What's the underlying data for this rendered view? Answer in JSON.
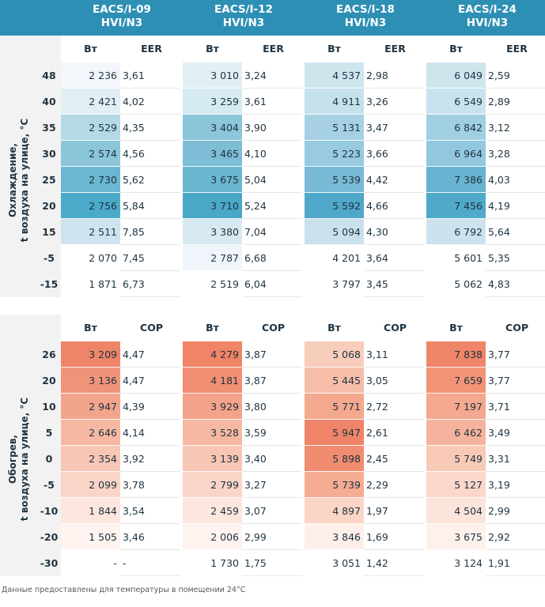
{
  "models": [
    {
      "line1": "EACS/I-09",
      "line2": "HVI/N3"
    },
    {
      "line1": "EACS/I-12",
      "line2": "HVI/N3"
    },
    {
      "line1": "EACS/I-18",
      "line2": "HVI/N3"
    },
    {
      "line1": "EACS/I-24",
      "line2": "HVI/N3"
    }
  ],
  "cooling": {
    "title_line1": "Охлаждение,",
    "title_line2": "t воздуха на улице, °C",
    "power_label": "Вт",
    "ratio_label": "EER",
    "rows": [
      {
        "label": "48",
        "cells": [
          [
            "2 236",
            "3,61"
          ],
          [
            "3 010",
            "3,24"
          ],
          [
            "4 537",
            "2,98"
          ],
          [
            "6 049",
            "2,59"
          ]
        ]
      },
      {
        "label": "40",
        "cells": [
          [
            "2 421",
            "4,02"
          ],
          [
            "3 259",
            "3,61"
          ],
          [
            "4 911",
            "3,26"
          ],
          [
            "6 549",
            "2,89"
          ]
        ]
      },
      {
        "label": "35",
        "cells": [
          [
            "2 529",
            "4,35"
          ],
          [
            "3 404",
            "3,90"
          ],
          [
            "5 131",
            "3,47"
          ],
          [
            "6 842",
            "3,12"
          ]
        ]
      },
      {
        "label": "30",
        "cells": [
          [
            "2 574",
            "4,56"
          ],
          [
            "3 465",
            "4,10"
          ],
          [
            "5 223",
            "3,66"
          ],
          [
            "6 964",
            "3,28"
          ]
        ]
      },
      {
        "label": "25",
        "cells": [
          [
            "2 730",
            "5,62"
          ],
          [
            "3 675",
            "5,04"
          ],
          [
            "5 539",
            "4,42"
          ],
          [
            "7 386",
            "4,03"
          ]
        ]
      },
      {
        "label": "20",
        "cells": [
          [
            "2 756",
            "5,84"
          ],
          [
            "3 710",
            "5,24"
          ],
          [
            "5 592",
            "4,66"
          ],
          [
            "7 456",
            "4,19"
          ]
        ]
      },
      {
        "label": "15",
        "cells": [
          [
            "2 511",
            "7,85"
          ],
          [
            "3 380",
            "7,04"
          ],
          [
            "5 094",
            "4,30"
          ],
          [
            "6 792",
            "5,64"
          ]
        ]
      },
      {
        "label": "-5",
        "cells": [
          [
            "2 070",
            "7,45"
          ],
          [
            "2 787",
            "6,68"
          ],
          [
            "4 201",
            "3,64"
          ],
          [
            "5 601",
            "5,35"
          ]
        ]
      },
      {
        "label": "-15",
        "cells": [
          [
            "1 871",
            "6,73"
          ],
          [
            "2 519",
            "6,04"
          ],
          [
            "3 797",
            "3,45"
          ],
          [
            "5 062",
            "4,83"
          ]
        ]
      }
    ],
    "shades": [
      [
        "#f3f7fc",
        "#e2f0f5",
        "#cfe5ee",
        "#cfe5ee"
      ],
      [
        "#e1eff5",
        "#d6eaf1",
        "#c5e1ec",
        "#c9e3ee"
      ],
      [
        "#b4d9e7",
        "#8cc6db",
        "#a6d1e3",
        "#a0cfe1"
      ],
      [
        "#8bc5da",
        "#7dbdd6",
        "#98cae0",
        "#92c8df"
      ],
      [
        "#6ab7d1",
        "#6ab6d1",
        "#78bad6",
        "#66b4d1"
      ],
      [
        "#4aaac8",
        "#4aa8c7",
        "#4fa8c9",
        "#4fa9c8"
      ],
      [
        "#cfe3ef",
        "#d7e9f2",
        "#cbe0ed",
        "#cde2ef"
      ],
      [
        "#ffffff",
        "#f0f5fb",
        "#ffffff",
        "#ffffff"
      ],
      [
        "#ffffff",
        "#ffffff",
        "#ffffff",
        "#ffffff"
      ]
    ]
  },
  "heating": {
    "title_line1": "Обогрев,",
    "title_line2": "t воздуха на улице, °C",
    "power_label": "Вт",
    "ratio_label": "COP",
    "rows": [
      {
        "label": "26",
        "cells": [
          [
            "3 209",
            "4,47"
          ],
          [
            "4 279",
            "3,87"
          ],
          [
            "5 068",
            "3,11"
          ],
          [
            "7 838",
            "3,77"
          ]
        ]
      },
      {
        "label": "20",
        "cells": [
          [
            "3 136",
            "4,47"
          ],
          [
            "4 181",
            "3,87"
          ],
          [
            "5 445",
            "3,05"
          ],
          [
            "7 659",
            "3,77"
          ]
        ]
      },
      {
        "label": "10",
        "cells": [
          [
            "2 947",
            "4,39"
          ],
          [
            "3 929",
            "3,80"
          ],
          [
            "5 771",
            "2,72"
          ],
          [
            "7 197",
            "3,71"
          ]
        ]
      },
      {
        "label": "5",
        "cells": [
          [
            "2 646",
            "4,14"
          ],
          [
            "3 528",
            "3,59"
          ],
          [
            "5 947",
            "2,61"
          ],
          [
            "6 462",
            "3,49"
          ]
        ]
      },
      {
        "label": "0",
        "cells": [
          [
            "2 354",
            "3,92"
          ],
          [
            "3 139",
            "3,40"
          ],
          [
            "5 898",
            "2,45"
          ],
          [
            "5 749",
            "3,31"
          ]
        ]
      },
      {
        "label": "-5",
        "cells": [
          [
            "2 099",
            "3,78"
          ],
          [
            "2 799",
            "3,27"
          ],
          [
            "5 739",
            "2,29"
          ],
          [
            "5 127",
            "3,19"
          ]
        ]
      },
      {
        "label": "-10",
        "cells": [
          [
            "1 844",
            "3,54"
          ],
          [
            "2 459",
            "3,07"
          ],
          [
            "4 897",
            "1,97"
          ],
          [
            "4 504",
            "2,99"
          ]
        ]
      },
      {
        "label": "-20",
        "cells": [
          [
            "1 505",
            "3,46"
          ],
          [
            "2 006",
            "2,99"
          ],
          [
            "3 846",
            "1,69"
          ],
          [
            "3 675",
            "2,92"
          ]
        ]
      },
      {
        "label": "-30",
        "cells": [
          [
            "-",
            "-"
          ],
          [
            "1 730",
            "1,75"
          ],
          [
            "3 051",
            "1,42"
          ],
          [
            "3 124",
            "1,91"
          ]
        ]
      }
    ],
    "shades": [
      [
        "#ee8468",
        "#ef8467",
        "#f8cdbb",
        "#ef8569"
      ],
      [
        "#f09479",
        "#f18f74",
        "#f6bea8",
        "#f19478"
      ],
      [
        "#f3a58c",
        "#f3a38a",
        "#f4a88e",
        "#f4a88f"
      ],
      [
        "#f6b8a3",
        "#f6b8a3",
        "#ef8468",
        "#f5b39d"
      ],
      [
        "#f8c6b4",
        "#f8c6b4",
        "#f08c70",
        "#f8c9b7"
      ],
      [
        "#fad5c7",
        "#fad5c7",
        "#f4ac92",
        "#fbd7ca"
      ],
      [
        "#fde6dd",
        "#fde6dd",
        "#fbd5c6",
        "#fce4db"
      ],
      [
        "#fef3ef",
        "#fef3ef",
        "#fdefe9",
        "#fef1ec"
      ],
      [
        "#ffffff",
        "#ffffff",
        "#ffffff",
        "#ffffff"
      ]
    ]
  },
  "footnote": "Данные предоставлены для температуры в помещении 24°C"
}
